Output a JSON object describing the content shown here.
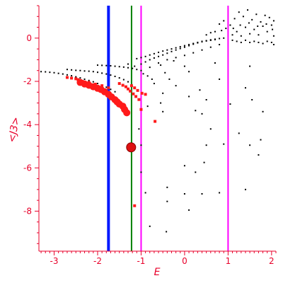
{
  "chart_data": {
    "type": "scatter",
    "title": "",
    "xlabel": "E",
    "ylabel": "<J3>",
    "xlim": [
      -3.35,
      2.1
    ],
    "ylim": [
      -9.85,
      1.5
    ],
    "x_ticks": [
      -3,
      -2,
      -1,
      0,
      1,
      2
    ],
    "y_ticks": [
      0,
      -2,
      -4,
      -6,
      -8
    ],
    "grid": false,
    "legend": "none",
    "colors": {
      "axis": "#e8002a",
      "tick_text": "#e8002a",
      "small_points": "#000000",
      "red_points": "#ff1a1a",
      "blue_line": "#0018ff",
      "green_line": "#008000",
      "magenta_line": "#ff00ff"
    },
    "vlines": [
      {
        "x": -1.75,
        "color": "#0018ff",
        "width": 4
      },
      {
        "x": -1.22,
        "color": "#008000",
        "width": 2
      },
      {
        "x": -1.0,
        "color": "#ff00ff",
        "width": 2
      },
      {
        "x": 1.0,
        "color": "#ff00ff",
        "width": 2
      }
    ],
    "series": [
      {
        "marker": "dot",
        "color": "#000000",
        "points": [
          [
            -3.3,
            -1.55
          ],
          [
            -3.2,
            -1.56
          ],
          [
            -3.1,
            -1.58
          ],
          [
            -3.0,
            -1.6
          ],
          [
            -2.9,
            -1.63
          ],
          [
            -2.8,
            -1.66
          ],
          [
            -2.7,
            -1.7
          ],
          [
            -2.6,
            -1.74
          ],
          [
            -2.5,
            -1.79
          ],
          [
            -2.4,
            -1.84
          ],
          [
            -2.3,
            -1.9
          ],
          [
            -2.2,
            -1.96
          ],
          [
            -2.1,
            -2.02
          ],
          [
            -2.0,
            -2.1
          ],
          [
            -1.9,
            -2.18
          ],
          [
            -1.8,
            -2.27
          ],
          [
            -1.7,
            -2.37
          ],
          [
            -1.6,
            -2.48
          ],
          [
            -2.7,
            -1.45
          ],
          [
            -2.6,
            -1.47
          ],
          [
            -2.5,
            -1.49
          ],
          [
            -2.4,
            -1.5
          ],
          [
            -2.3,
            -1.52
          ],
          [
            -2.2,
            -1.53
          ],
          [
            -2.1,
            -1.55
          ],
          [
            -2.0,
            -1.58
          ],
          [
            -1.9,
            -1.62
          ],
          [
            -1.8,
            -1.66
          ],
          [
            -1.7,
            -1.71
          ],
          [
            -1.6,
            -1.77
          ],
          [
            -1.5,
            -1.84
          ],
          [
            -1.4,
            -1.92
          ],
          [
            -1.3,
            -2.02
          ],
          [
            -2.0,
            -1.25
          ],
          [
            -1.9,
            -1.26
          ],
          [
            -1.8,
            -1.27
          ],
          [
            -1.7,
            -1.28
          ],
          [
            -1.6,
            -1.3
          ],
          [
            -1.5,
            -1.32
          ],
          [
            -1.4,
            -1.34
          ],
          [
            -1.3,
            -1.37
          ],
          [
            -1.2,
            -1.4
          ],
          [
            -1.1,
            -1.45
          ],
          [
            -1.0,
            -1.5
          ],
          [
            -1.1,
            -0.95
          ],
          [
            -1.0,
            -0.9
          ],
          [
            -0.9,
            -0.85
          ],
          [
            -0.8,
            -0.78
          ],
          [
            -0.7,
            -0.72
          ],
          [
            -0.6,
            -0.66
          ],
          [
            -0.5,
            -0.6
          ],
          [
            -0.4,
            -0.55
          ],
          [
            -0.3,
            -0.5
          ],
          [
            -0.2,
            -0.45
          ],
          [
            -0.1,
            -0.4
          ],
          [
            0.0,
            -0.35
          ],
          [
            0.1,
            -0.3
          ],
          [
            0.2,
            -0.25
          ],
          [
            0.3,
            -0.2
          ],
          [
            0.4,
            -0.15
          ],
          [
            0.5,
            -0.12
          ],
          [
            0.6,
            -0.08
          ],
          [
            0.7,
            -0.05
          ],
          [
            0.8,
            -0.02
          ],
          [
            0.9,
            0.0
          ],
          [
            -1.0,
            -1.2
          ],
          [
            -0.9,
            -1.1
          ],
          [
            -0.8,
            -1.0
          ],
          [
            -0.7,
            -0.92
          ],
          [
            -0.6,
            -0.85
          ],
          [
            -0.5,
            -0.78
          ],
          [
            -0.4,
            -0.7
          ],
          [
            -0.3,
            -0.62
          ],
          [
            -0.2,
            -0.55
          ],
          [
            -0.1,
            -0.48
          ],
          [
            0.0,
            -0.42
          ],
          [
            0.1,
            -0.35
          ],
          [
            0.2,
            -0.28
          ],
          [
            0.3,
            -0.22
          ],
          [
            0.4,
            -0.17
          ],
          [
            0.5,
            -0.13
          ],
          [
            0.6,
            -0.1
          ],
          [
            0.7,
            -0.07
          ],
          [
            -0.8,
            -1.35
          ],
          [
            -0.6,
            -1.15
          ],
          [
            -0.4,
            -1.0
          ],
          [
            -0.2,
            -0.9
          ],
          [
            0.0,
            -0.8
          ],
          [
            0.2,
            -0.68
          ],
          [
            0.4,
            -0.55
          ],
          [
            0.6,
            -0.42
          ],
          [
            0.8,
            -0.3
          ],
          [
            -1.3,
            -1.2
          ],
          [
            -1.15,
            -1.3
          ],
          [
            -0.95,
            -1.65
          ],
          [
            -0.85,
            -1.75
          ],
          [
            -0.75,
            -1.9
          ],
          [
            -0.7,
            -2.1
          ],
          [
            -0.55,
            -1.25
          ],
          [
            -0.45,
            -1.6
          ],
          [
            -0.35,
            -1.9
          ],
          [
            -0.25,
            -1.05
          ],
          [
            0.0,
            -1.3
          ],
          [
            0.1,
            -1.55
          ],
          [
            -0.2,
            -2.2
          ],
          [
            -0.5,
            -2.55
          ],
          [
            0.1,
            -2.7
          ],
          [
            0.35,
            -2.4
          ],
          [
            0.5,
            -2.85
          ],
          [
            0.25,
            -3.35
          ],
          [
            0.8,
            -1.9
          ],
          [
            -0.55,
            -3.0
          ],
          [
            -0.85,
            -3.15
          ],
          [
            -0.5,
            -3.4
          ],
          [
            0.7,
            -1.15
          ],
          [
            1.5,
            -1.3
          ],
          [
            1.1,
            0.15
          ],
          [
            1.2,
            0.3
          ],
          [
            1.3,
            0.1
          ],
          [
            1.4,
            0.5
          ],
          [
            1.5,
            0.2
          ],
          [
            1.6,
            0.4
          ],
          [
            1.7,
            0.15
          ],
          [
            1.8,
            0.55
          ],
          [
            1.9,
            0.3
          ],
          [
            2.0,
            0.6
          ],
          [
            2.05,
            0.1
          ],
          [
            1.05,
            0.6
          ],
          [
            1.15,
            0.9
          ],
          [
            1.25,
            1.2
          ],
          [
            1.35,
            1.0
          ],
          [
            1.45,
            1.3
          ],
          [
            1.55,
            0.85
          ],
          [
            1.65,
            1.1
          ],
          [
            1.75,
            0.75
          ],
          [
            1.85,
            1.05
          ],
          [
            1.95,
            0.95
          ],
          [
            2.05,
            0.8
          ],
          [
            1.1,
            -0.1
          ],
          [
            1.2,
            -0.15
          ],
          [
            1.3,
            -0.2
          ],
          [
            1.4,
            -0.1
          ],
          [
            1.5,
            -0.2
          ],
          [
            1.6,
            -0.15
          ],
          [
            1.7,
            -0.2
          ],
          [
            1.8,
            -0.25
          ],
          [
            1.9,
            -0.15
          ],
          [
            2.0,
            -0.2
          ],
          [
            2.05,
            -0.3
          ],
          [
            1.12,
            0.45
          ],
          [
            1.28,
            0.6
          ],
          [
            1.48,
            0.7
          ],
          [
            1.68,
            0.55
          ],
          [
            1.88,
            0.65
          ],
          [
            2.02,
            0.4
          ],
          [
            0.85,
            0.35
          ],
          [
            0.95,
            0.45
          ],
          [
            0.9,
            0.8
          ],
          [
            0.8,
            0.65
          ],
          [
            0.6,
            0.25
          ],
          [
            0.5,
            0.15
          ],
          [
            0.7,
            0.3
          ],
          [
            1.4,
            -2.3
          ],
          [
            1.55,
            -2.85
          ],
          [
            1.8,
            -3.4
          ],
          [
            1.75,
            -4.7
          ],
          [
            1.5,
            -4.95
          ],
          [
            1.7,
            -5.4
          ],
          [
            1.25,
            -4.4
          ],
          [
            1.05,
            -3.05
          ],
          [
            0.6,
            -4.2
          ],
          [
            0.45,
            -5.75
          ],
          [
            0.25,
            -6.2
          ],
          [
            0.8,
            -7.15
          ],
          [
            0.0,
            -7.2
          ],
          [
            -0.4,
            -6.9
          ],
          [
            -1.05,
            -4.2
          ],
          [
            -1.0,
            -6.2
          ],
          [
            0.4,
            -3.5
          ],
          [
            0.4,
            -7.2
          ],
          [
            1.4,
            -7.0
          ],
          [
            0.9,
            -4.9
          ],
          [
            0.5,
            -4.95
          ],
          [
            0.0,
            -5.9
          ],
          [
            -0.9,
            -7.15
          ],
          [
            -0.8,
            -8.7
          ],
          [
            -0.42,
            -8.95
          ],
          [
            0.1,
            -7.95
          ],
          [
            -1.0,
            -4.95
          ],
          [
            -0.4,
            -7.55
          ]
        ]
      },
      {
        "marker": "square",
        "color": "#ff1a1a",
        "points": [
          [
            -2.7,
            -1.82
          ],
          [
            -2.6,
            -1.85
          ],
          [
            -2.5,
            -1.88
          ],
          [
            -2.45,
            -1.92
          ],
          [
            -2.4,
            -1.97
          ],
          [
            -2.35,
            -2.0
          ],
          [
            -2.2,
            -2.05
          ],
          [
            -2.05,
            -2.13
          ],
          [
            -1.9,
            -2.2
          ],
          [
            -1.75,
            -2.3
          ],
          [
            -1.5,
            -2.1
          ],
          [
            -1.42,
            -2.18
          ],
          [
            -1.35,
            -2.25
          ],
          [
            -1.3,
            -2.35
          ],
          [
            -1.25,
            -2.45
          ],
          [
            -1.18,
            -2.58
          ],
          [
            -1.12,
            -2.7
          ],
          [
            -1.05,
            -2.84
          ],
          [
            -1.22,
            -2.2
          ],
          [
            -1.15,
            -2.3
          ],
          [
            -1.08,
            -2.42
          ],
          [
            -0.98,
            -2.55
          ],
          [
            -0.9,
            -2.6
          ],
          [
            -1.0,
            -3.3
          ],
          [
            -0.68,
            -3.85
          ],
          [
            -1.15,
            -7.75
          ]
        ]
      },
      {
        "marker": "blob",
        "color": "#ff1a1a",
        "points": [
          [
            -2.4,
            -2.05
          ],
          [
            -2.3,
            -2.12
          ],
          [
            -2.2,
            -2.18
          ],
          [
            -2.1,
            -2.25
          ],
          [
            -2.0,
            -2.32
          ],
          [
            -1.92,
            -2.38
          ],
          [
            -1.84,
            -2.48
          ],
          [
            -1.75,
            -2.6
          ],
          [
            -1.68,
            -2.72
          ],
          [
            -1.6,
            -2.85
          ],
          [
            -1.55,
            -2.95
          ],
          [
            -1.5,
            -3.05
          ],
          [
            -1.42,
            -3.15
          ],
          [
            -1.38,
            -3.3
          ],
          [
            -1.33,
            -3.45
          ]
        ]
      },
      {
        "marker": "bigcircle",
        "color": "#dd1111",
        "points": [
          [
            -1.23,
            -5.05
          ]
        ]
      }
    ]
  }
}
